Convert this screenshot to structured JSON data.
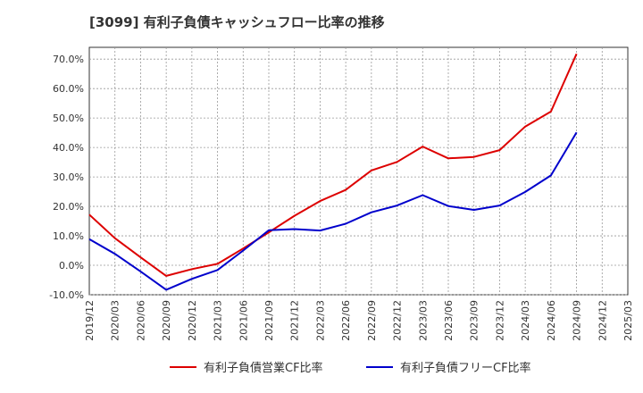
{
  "chart_data": {
    "type": "line",
    "title": "[3099]  有利子負債キャッシュフロー比率の推移",
    "xlabel": "",
    "ylabel": "",
    "ylim": [
      -10,
      74
    ],
    "y_ticks": [
      "-10.0%",
      "0.0%",
      "10.0%",
      "20.0%",
      "30.0%",
      "40.0%",
      "50.0%",
      "60.0%",
      "70.0%"
    ],
    "y_tick_values": [
      -10,
      0,
      10,
      20,
      30,
      40,
      50,
      60,
      70
    ],
    "x_ticks": [
      "2019/12",
      "2020/03",
      "2020/06",
      "2020/09",
      "2020/12",
      "2021/03",
      "2021/06",
      "2021/09",
      "2021/12",
      "2022/03",
      "2022/06",
      "2022/09",
      "2022/12",
      "2023/03",
      "2023/06",
      "2023/09",
      "2023/12",
      "2024/03",
      "2024/06",
      "2024/09",
      "2024/12",
      "2025/03"
    ],
    "grid": true,
    "legend_position": "bottom",
    "series": [
      {
        "name": "有利子負債営業CF比率",
        "color": "#dd0000",
        "values": [
          17.2,
          9.2,
          2.7,
          -3.6,
          -1.3,
          0.5,
          5.7,
          11.2,
          16.8,
          21.8,
          25.6,
          32.2,
          35.1,
          40.3,
          36.3,
          36.8,
          39.1,
          47.1,
          52.2,
          71.8
        ]
      },
      {
        "name": "有利子負債フリーCF比率",
        "color": "#0000cc",
        "values": [
          8.9,
          3.9,
          -2.1,
          -8.3,
          -4.6,
          -1.6,
          5.0,
          11.9,
          12.3,
          11.8,
          14.1,
          18.0,
          20.3,
          23.8,
          20.1,
          18.8,
          20.3,
          24.9,
          30.5,
          45.1
        ]
      }
    ]
  }
}
